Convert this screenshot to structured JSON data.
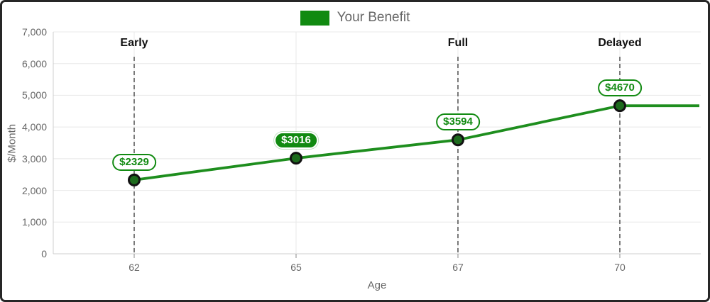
{
  "legend": {
    "label": "Your Benefit"
  },
  "chart_data": {
    "type": "line",
    "x_categories": [
      "62",
      "65",
      "67",
      "70"
    ],
    "series": [
      {
        "name": "Your Benefit",
        "values": [
          2329,
          3016,
          3594,
          4670
        ]
      }
    ],
    "point_labels": [
      "$2329",
      "$3016",
      "$3594",
      "$4670"
    ],
    "highlighted_point_index": 1,
    "milestones": [
      {
        "x": "62",
        "label": "Early"
      },
      {
        "x": "67",
        "label": "Full"
      },
      {
        "x": "70",
        "label": "Delayed"
      }
    ],
    "xlabel": "Age",
    "ylabel": "$/Month",
    "ylim": [
      0,
      7000
    ],
    "ytick_labels": [
      "0",
      "1,000",
      "2,000",
      "3,000",
      "4,000",
      "5,000",
      "6,000",
      "7,000"
    ],
    "grid": true,
    "legend_position": "top",
    "line_extends_right": true
  },
  "colors": {
    "green": "#118a11",
    "line": "#1e8e1e",
    "marker_fill": "#1d6b1d",
    "marker_stroke": "#121212",
    "grid": "#e8e8e8",
    "axis": "#cfcfcf",
    "tick_mark": "#8a8a8a",
    "tick_text": "#666666",
    "milestone_text": "#111111",
    "dashed_line": "#414141",
    "pill_bg": "#ffffff",
    "highlight_pill_text": "#ffffff"
  }
}
